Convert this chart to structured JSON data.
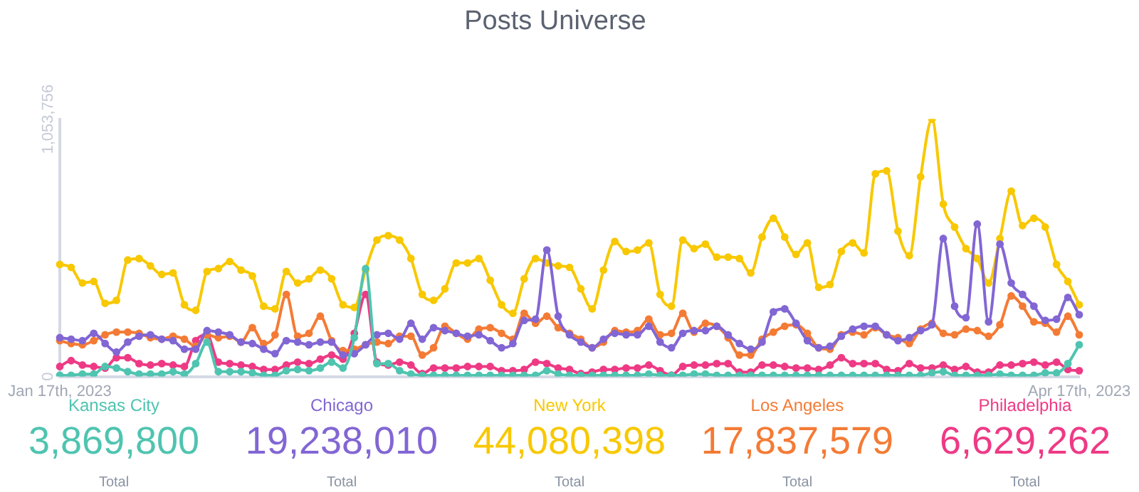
{
  "chart_data": {
    "type": "line",
    "title": "Posts Universe",
    "categories": [
      "Jan 17th, 2023",
      null,
      null,
      null,
      null,
      null,
      null,
      null,
      null,
      null,
      null,
      null,
      null,
      null,
      null,
      null,
      null,
      null,
      null,
      null,
      null,
      null,
      null,
      null,
      null,
      null,
      null,
      null,
      null,
      null,
      null,
      null,
      null,
      null,
      null,
      null,
      null,
      null,
      null,
      null,
      null,
      null,
      null,
      null,
      null,
      null,
      null,
      null,
      null,
      null,
      null,
      null,
      null,
      null,
      null,
      null,
      null,
      null,
      null,
      null,
      null,
      null,
      null,
      null,
      null,
      null,
      null,
      null,
      null,
      null,
      null,
      null,
      null,
      null,
      null,
      null,
      null,
      null,
      null,
      null,
      null,
      null,
      null,
      null,
      null,
      null,
      null,
      null,
      null,
      null,
      "Apr 17th, 2023"
    ],
    "series": [
      {
        "name": "Kansas City",
        "color": "#4fc4b0",
        "values": [
          5000,
          5000,
          10000,
          10000,
          41000,
          35000,
          20000,
          10000,
          10000,
          10000,
          20000,
          10000,
          53000,
          141000,
          20000,
          20000,
          20000,
          15000,
          5000,
          5000,
          24000,
          29000,
          24000,
          35000,
          59000,
          35000,
          159000,
          442000,
          53000,
          53000,
          24000,
          10000,
          5000,
          5000,
          5000,
          5000,
          5000,
          5000,
          5000,
          5000,
          5000,
          5000,
          5000,
          24000,
          10000,
          5000,
          5000,
          5000,
          5000,
          5000,
          5000,
          5000,
          10000,
          5000,
          5000,
          5000,
          10000,
          10000,
          5000,
          5000,
          5000,
          5000,
          5000,
          5000,
          5000,
          5000,
          5000,
          5000,
          5000,
          5000,
          5000,
          5000,
          5000,
          5000,
          5000,
          5000,
          5000,
          15000,
          20000,
          5000,
          5000,
          5000,
          5000,
          10000,
          5000,
          5000,
          5000,
          15000,
          15000,
          53000,
          130000
        ]
      },
      {
        "name": "Chicago",
        "color": "#8266d4",
        "values": [
          159000,
          153000,
          147000,
          177000,
          135000,
          100000,
          141000,
          165000,
          171000,
          153000,
          147000,
          112000,
          112000,
          188000,
          182000,
          171000,
          141000,
          135000,
          112000,
          94000,
          147000,
          141000,
          130000,
          141000,
          141000,
          88000,
          94000,
          130000,
          171000,
          177000,
          153000,
          218000,
          153000,
          200000,
          188000,
          177000,
          165000,
          171000,
          147000,
          118000,
          135000,
          230000,
          235000,
          518000,
          247000,
          171000,
          141000,
          118000,
          153000,
          177000,
          171000,
          171000,
          206000,
          141000,
          118000,
          177000,
          188000,
          188000,
          206000,
          171000,
          135000,
          112000,
          141000,
          265000,
          277000,
          218000,
          147000,
          118000,
          124000,
          165000,
          194000,
          206000,
          206000,
          171000,
          147000,
          159000,
          188000,
          212000,
          565000,
          288000,
          241000,
          624000,
          224000,
          542000,
          383000,
          336000,
          288000,
          230000,
          235000,
          324000,
          253000
        ]
      },
      {
        "name": "New York",
        "color": "#f8c800",
        "values": [
          459000,
          447000,
          383000,
          389000,
          300000,
          312000,
          477000,
          483000,
          453000,
          418000,
          424000,
          294000,
          271000,
          430000,
          442000,
          471000,
          436000,
          412000,
          288000,
          277000,
          430000,
          383000,
          400000,
          436000,
          400000,
          294000,
          283000,
          436000,
          559000,
          577000,
          559000,
          483000,
          336000,
          312000,
          359000,
          465000,
          465000,
          483000,
          394000,
          294000,
          259000,
          400000,
          483000,
          465000,
          453000,
          447000,
          359000,
          277000,
          436000,
          553000,
          512000,
          518000,
          547000,
          336000,
          288000,
          559000,
          524000,
          542000,
          489000,
          489000,
          483000,
          424000,
          571000,
          648000,
          571000,
          500000,
          547000,
          365000,
          377000,
          512000,
          547000,
          506000,
          830000,
          842000,
          595000,
          495000,
          818000,
          1053756,
          706000,
          612000,
          524000,
          483000,
          383000,
          565000,
          759000,
          618000,
          648000,
          612000,
          459000,
          389000,
          294000
        ]
      },
      {
        "name": "Los Angeles",
        "color": "#f47b35",
        "values": [
          147000,
          135000,
          130000,
          147000,
          171000,
          182000,
          182000,
          177000,
          159000,
          153000,
          165000,
          153000,
          124000,
          171000,
          159000,
          165000,
          141000,
          200000,
          135000,
          171000,
          336000,
          165000,
          177000,
          247000,
          147000,
          106000,
          112000,
          130000,
          141000,
          135000,
          165000,
          165000,
          88000,
          118000,
          206000,
          177000,
          153000,
          194000,
          200000,
          177000,
          153000,
          259000,
          218000,
          247000,
          200000,
          177000,
          153000,
          118000,
          141000,
          188000,
          182000,
          188000,
          235000,
          171000,
          177000,
          259000,
          182000,
          218000,
          206000,
          159000,
          88000,
          88000,
          153000,
          182000,
          206000,
          212000,
          177000,
          118000,
          112000,
          171000,
          182000,
          171000,
          200000,
          171000,
          159000,
          135000,
          194000,
          218000,
          177000,
          171000,
          194000,
          188000,
          165000,
          212000,
          330000,
          288000,
          224000,
          218000,
          182000,
          247000,
          171000
        ]
      },
      {
        "name": "Philadelphia",
        "color": "#ee3a85",
        "values": [
          41000,
          65000,
          47000,
          41000,
          35000,
          77000,
          77000,
          53000,
          47000,
          53000,
          47000,
          41000,
          147000,
          171000,
          59000,
          53000,
          47000,
          41000,
          29000,
          29000,
          47000,
          59000,
          53000,
          71000,
          88000,
          71000,
          177000,
          336000,
          59000,
          47000,
          59000,
          47000,
          12000,
          35000,
          35000,
          35000,
          41000,
          41000,
          41000,
          24000,
          24000,
          29000,
          59000,
          53000,
          35000,
          29000,
          12000,
          18000,
          29000,
          29000,
          35000,
          35000,
          47000,
          24000,
          6000,
          41000,
          47000,
          47000,
          53000,
          53000,
          18000,
          18000,
          47000,
          47000,
          41000,
          35000,
          35000,
          29000,
          47000,
          77000,
          53000,
          53000,
          53000,
          29000,
          24000,
          53000,
          35000,
          35000,
          47000,
          29000,
          41000,
          18000,
          18000,
          47000,
          47000,
          53000,
          59000,
          47000,
          59000,
          29000,
          24000
        ]
      }
    ],
    "ylim": [
      0,
      1053756
    ],
    "yticks": [
      0,
      {
        "value": 1053756,
        "label": "1,053,756"
      }
    ],
    "grid": false,
    "legend": "bottom",
    "marker": "circle",
    "annotations": [
      "3,869,800",
      "Total",
      "19,238,010",
      "Total",
      "44,080,398",
      "Total",
      "17,837,579",
      "Total",
      "6,629,262",
      "Total"
    ]
  }
}
